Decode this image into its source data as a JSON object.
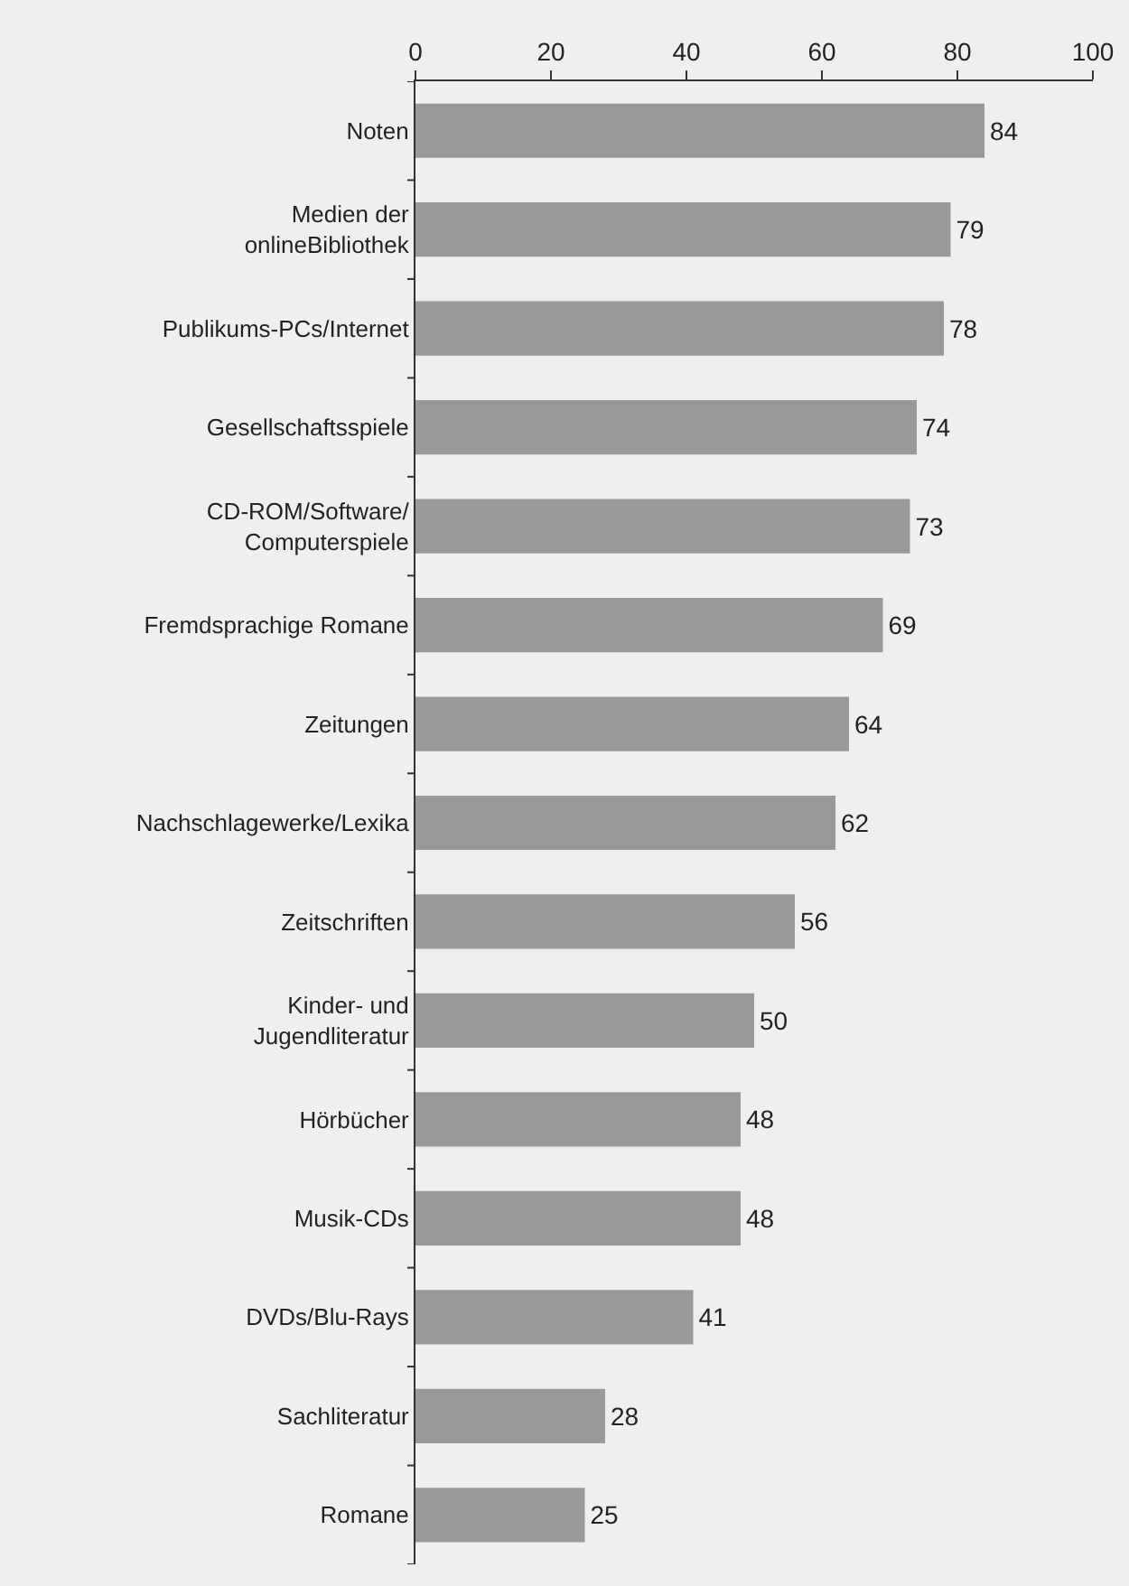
{
  "chart_data": {
    "type": "bar",
    "orientation": "horizontal",
    "categories": [
      "Noten",
      "Medien der onlineBibliothek",
      "Publikums-PCs/Internet",
      "Gesellschaftsspiele",
      "CD-ROM/Software/Computerspiele",
      "Fremdsprachige Romane",
      "Zeitungen",
      "Nachschlagewerke/Lexika",
      "Zeitschriften",
      "Kinder- und Jugendliteratur",
      "Hörbücher",
      "Musik-CDs",
      "DVDs/Blu-Rays",
      "Sachliteratur",
      "Romane"
    ],
    "values": [
      84,
      79,
      78,
      74,
      73,
      69,
      64,
      62,
      56,
      50,
      48,
      48,
      41,
      28,
      25
    ],
    "color": "#999999",
    "xlim": [
      0,
      100
    ],
    "xticks": [
      0,
      20,
      40,
      60,
      80,
      100
    ],
    "data_labels": true,
    "grid": false,
    "legend": false
  }
}
